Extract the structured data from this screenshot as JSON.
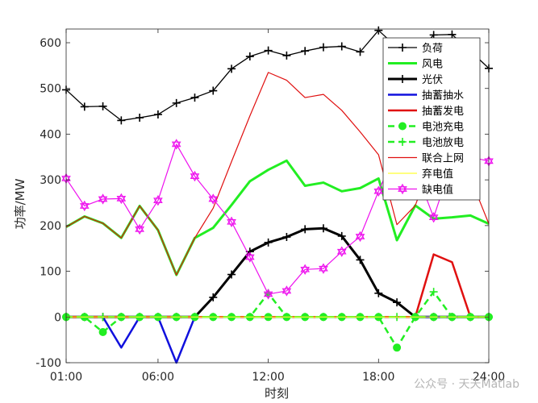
{
  "chart_data": {
    "type": "line",
    "xlabel": "时刻",
    "ylabel": "功率/MW",
    "x": [
      1,
      2,
      3,
      4,
      5,
      6,
      7,
      8,
      9,
      10,
      11,
      12,
      13,
      14,
      15,
      16,
      17,
      18,
      19,
      20,
      21,
      22,
      23,
      24
    ],
    "xlim": [
      1,
      24
    ],
    "ylim": [
      -100,
      630
    ],
    "xticks": [
      {
        "value": 1,
        "label": "01:00"
      },
      {
        "value": 6,
        "label": "06:00"
      },
      {
        "value": 12,
        "label": "12:00"
      },
      {
        "value": 18,
        "label": "18:00"
      },
      {
        "value": 24,
        "label": "24:00"
      }
    ],
    "yticks": [
      {
        "value": -100,
        "label": "-100"
      },
      {
        "value": 0,
        "label": "0"
      },
      {
        "value": 100,
        "label": "100"
      },
      {
        "value": 200,
        "label": "200"
      },
      {
        "value": 300,
        "label": "300"
      },
      {
        "value": 400,
        "label": "400"
      },
      {
        "value": 500,
        "label": "500"
      },
      {
        "value": 600,
        "label": "600"
      }
    ],
    "grid": false,
    "legend_position": "top-right",
    "series": [
      {
        "name": "负荷",
        "color": "#000000",
        "width": 1.3,
        "dash": "",
        "marker": "plus",
        "values": [
          497,
          460,
          461,
          430,
          436,
          443,
          468,
          480,
          495,
          543,
          570,
          583,
          572,
          582,
          590,
          592,
          580,
          627,
          590,
          575,
          617,
          618,
          582,
          544
        ]
      },
      {
        "name": "风电",
        "color": "#22ee22",
        "width": 3,
        "dash": "",
        "marker": "none",
        "values": [
          197,
          220,
          205,
          173,
          243,
          190,
          92,
          173,
          195,
          245,
          297,
          322,
          342,
          287,
          294,
          275,
          282,
          303,
          168,
          244,
          215,
          218,
          222,
          204
        ]
      },
      {
        "name": "光伏",
        "color": "#000000",
        "width": 3,
        "dash": "",
        "marker": "plus",
        "values": [
          0,
          0,
          0,
          0,
          0,
          0,
          0,
          0,
          43,
          93,
          143,
          163,
          175,
          192,
          194,
          177,
          125,
          52,
          32,
          0,
          0,
          0,
          0,
          0
        ]
      },
      {
        "name": "抽蓄抽水",
        "color": "#1010dd",
        "width": 2.5,
        "dash": "",
        "marker": "none",
        "values": [
          0,
          0,
          0,
          -67,
          0,
          0,
          -100,
          0,
          0,
          0,
          0,
          0,
          0,
          0,
          0,
          0,
          0,
          0,
          0,
          0,
          0,
          0,
          0,
          0
        ]
      },
      {
        "name": "抽蓄发电",
        "color": "#e01010",
        "width": 2.5,
        "dash": "",
        "marker": "none",
        "values": [
          0,
          0,
          0,
          0,
          0,
          0,
          0,
          0,
          0,
          0,
          0,
          0,
          0,
          0,
          0,
          0,
          0,
          0,
          0,
          0,
          137,
          120,
          0,
          0
        ]
      },
      {
        "name": "电池充电",
        "color": "#22ee22",
        "width": 2.5,
        "dash": "8,5",
        "marker": "dot",
        "values": [
          0,
          0,
          -33,
          0,
          0,
          0,
          0,
          0,
          0,
          0,
          0,
          0,
          0,
          0,
          0,
          0,
          0,
          0,
          -67,
          0,
          0,
          0,
          0,
          0
        ]
      },
      {
        "name": "电池放电",
        "color": "#22ee22",
        "width": 2.5,
        "dash": "8,5",
        "marker": "plus",
        "values": [
          0,
          0,
          0,
          0,
          0,
          0,
          0,
          0,
          0,
          0,
          0,
          52,
          0,
          0,
          0,
          0,
          0,
          0,
          0,
          0,
          55,
          0,
          0,
          0
        ]
      },
      {
        "name": "联合上网",
        "color": "#e01010",
        "width": 1.2,
        "dash": "",
        "marker": "none",
        "values": [
          197,
          220,
          205,
          173,
          243,
          190,
          92,
          173,
          238,
          340,
          440,
          535,
          518,
          480,
          487,
          452,
          405,
          355,
          202,
          244,
          352,
          340,
          304,
          204
        ]
      },
      {
        "name": "弃电值",
        "color": "#ffff33",
        "width": 1.2,
        "dash": "",
        "marker": "none",
        "values": [
          0,
          0,
          0,
          0,
          0,
          0,
          0,
          0,
          0,
          0,
          0,
          0,
          0,
          0,
          0,
          0,
          0,
          0,
          0,
          0,
          0,
          0,
          0,
          0
        ]
      },
      {
        "name": "缺电值",
        "color": "#ee11ee",
        "width": 1.2,
        "dash": "",
        "marker": "hexagram",
        "values": [
          303,
          243,
          258,
          259,
          192,
          255,
          378,
          308,
          258,
          208,
          131,
          50,
          57,
          104,
          106,
          143,
          176,
          275,
          367,
          323,
          218,
          340,
          350,
          341
        ]
      }
    ]
  },
  "watermark": "公众号 · 天天Matlab",
  "colors": {
    "axis": "#262626",
    "background": "#ffffff"
  }
}
